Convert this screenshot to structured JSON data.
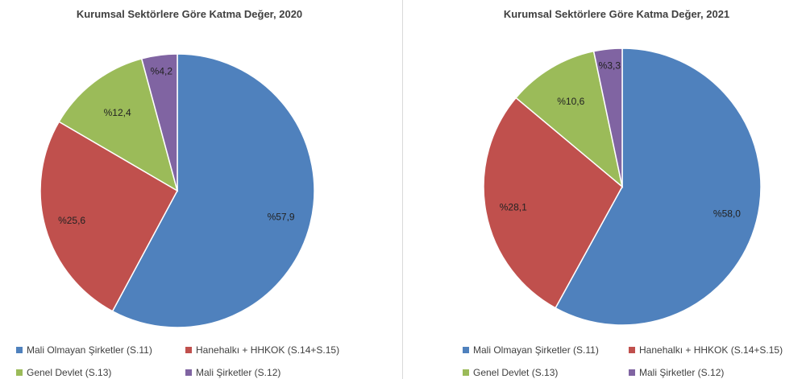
{
  "colors": {
    "mali_olmayan": "#4f81bd",
    "hanehalki": "#c0504d",
    "genel_devlet": "#9bbb59",
    "mali_sirketler": "#8064a2"
  },
  "legend": [
    {
      "label": "Mali Olmayan Şirketler (S.11)",
      "color": "#4f81bd"
    },
    {
      "label": "Hanehalkı + HHKOK (S.14+S.15)",
      "color": "#c0504d"
    },
    {
      "label": "Genel Devlet (S.13)",
      "color": "#9bbb59"
    },
    {
      "label": "Mali Şirketler (S.12)",
      "color": "#8064a2"
    }
  ],
  "chart_data": [
    {
      "type": "pie",
      "title": "Kurumsal Sektörlere Göre Katma Değer, 2020",
      "categories": [
        "Mali Olmayan Şirketler (S.11)",
        "Hanehalkı + HHKOK (S.14+S.15)",
        "Genel Devlet (S.13)",
        "Mali Şirketler (S.12)"
      ],
      "values": [
        57.9,
        25.6,
        12.4,
        4.2
      ],
      "data_labels": [
        "%57,9",
        "%25,6",
        "%12,4",
        "%4,2"
      ],
      "legend_position": "bottom"
    },
    {
      "type": "pie",
      "title": "Kurumsal Sektörlere Göre Katma Değer, 2021",
      "categories": [
        "Mali Olmayan Şirketler (S.11)",
        "Hanehalkı + HHKOK (S.14+S.15)",
        "Genel Devlet (S.13)",
        "Mali Şirketler (S.12)"
      ],
      "values": [
        58.0,
        28.1,
        10.6,
        3.3
      ],
      "data_labels": [
        "%58,0",
        "%28,1",
        "%10,6",
        "%3,3"
      ],
      "legend_position": "bottom"
    }
  ]
}
